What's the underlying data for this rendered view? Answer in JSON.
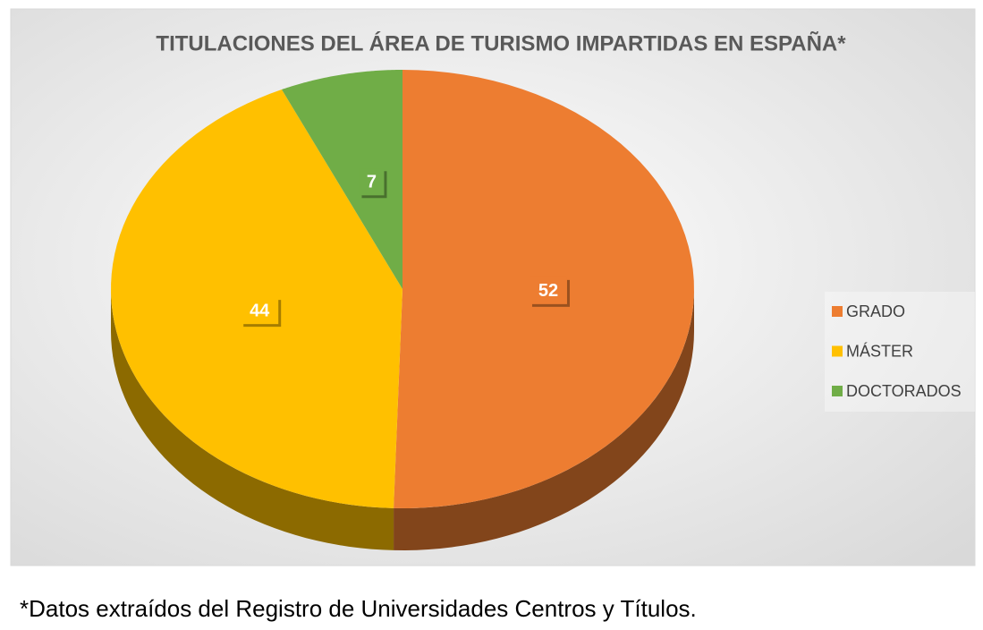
{
  "chart_data": {
    "type": "pie",
    "title": "TITULACIONES DEL ÁREA DE TURISMO IMPARTIDAS EN ESPAÑA*",
    "categories": [
      "GRADO",
      "MÁSTER",
      "DOCTORADOS"
    ],
    "values": [
      52,
      44,
      7
    ],
    "colors": [
      "#ed7d31",
      "#ffc000",
      "#70ad47"
    ],
    "legend": "right",
    "footnote": "*Datos extraídos del Registro de Universidades Centros y Títulos."
  }
}
